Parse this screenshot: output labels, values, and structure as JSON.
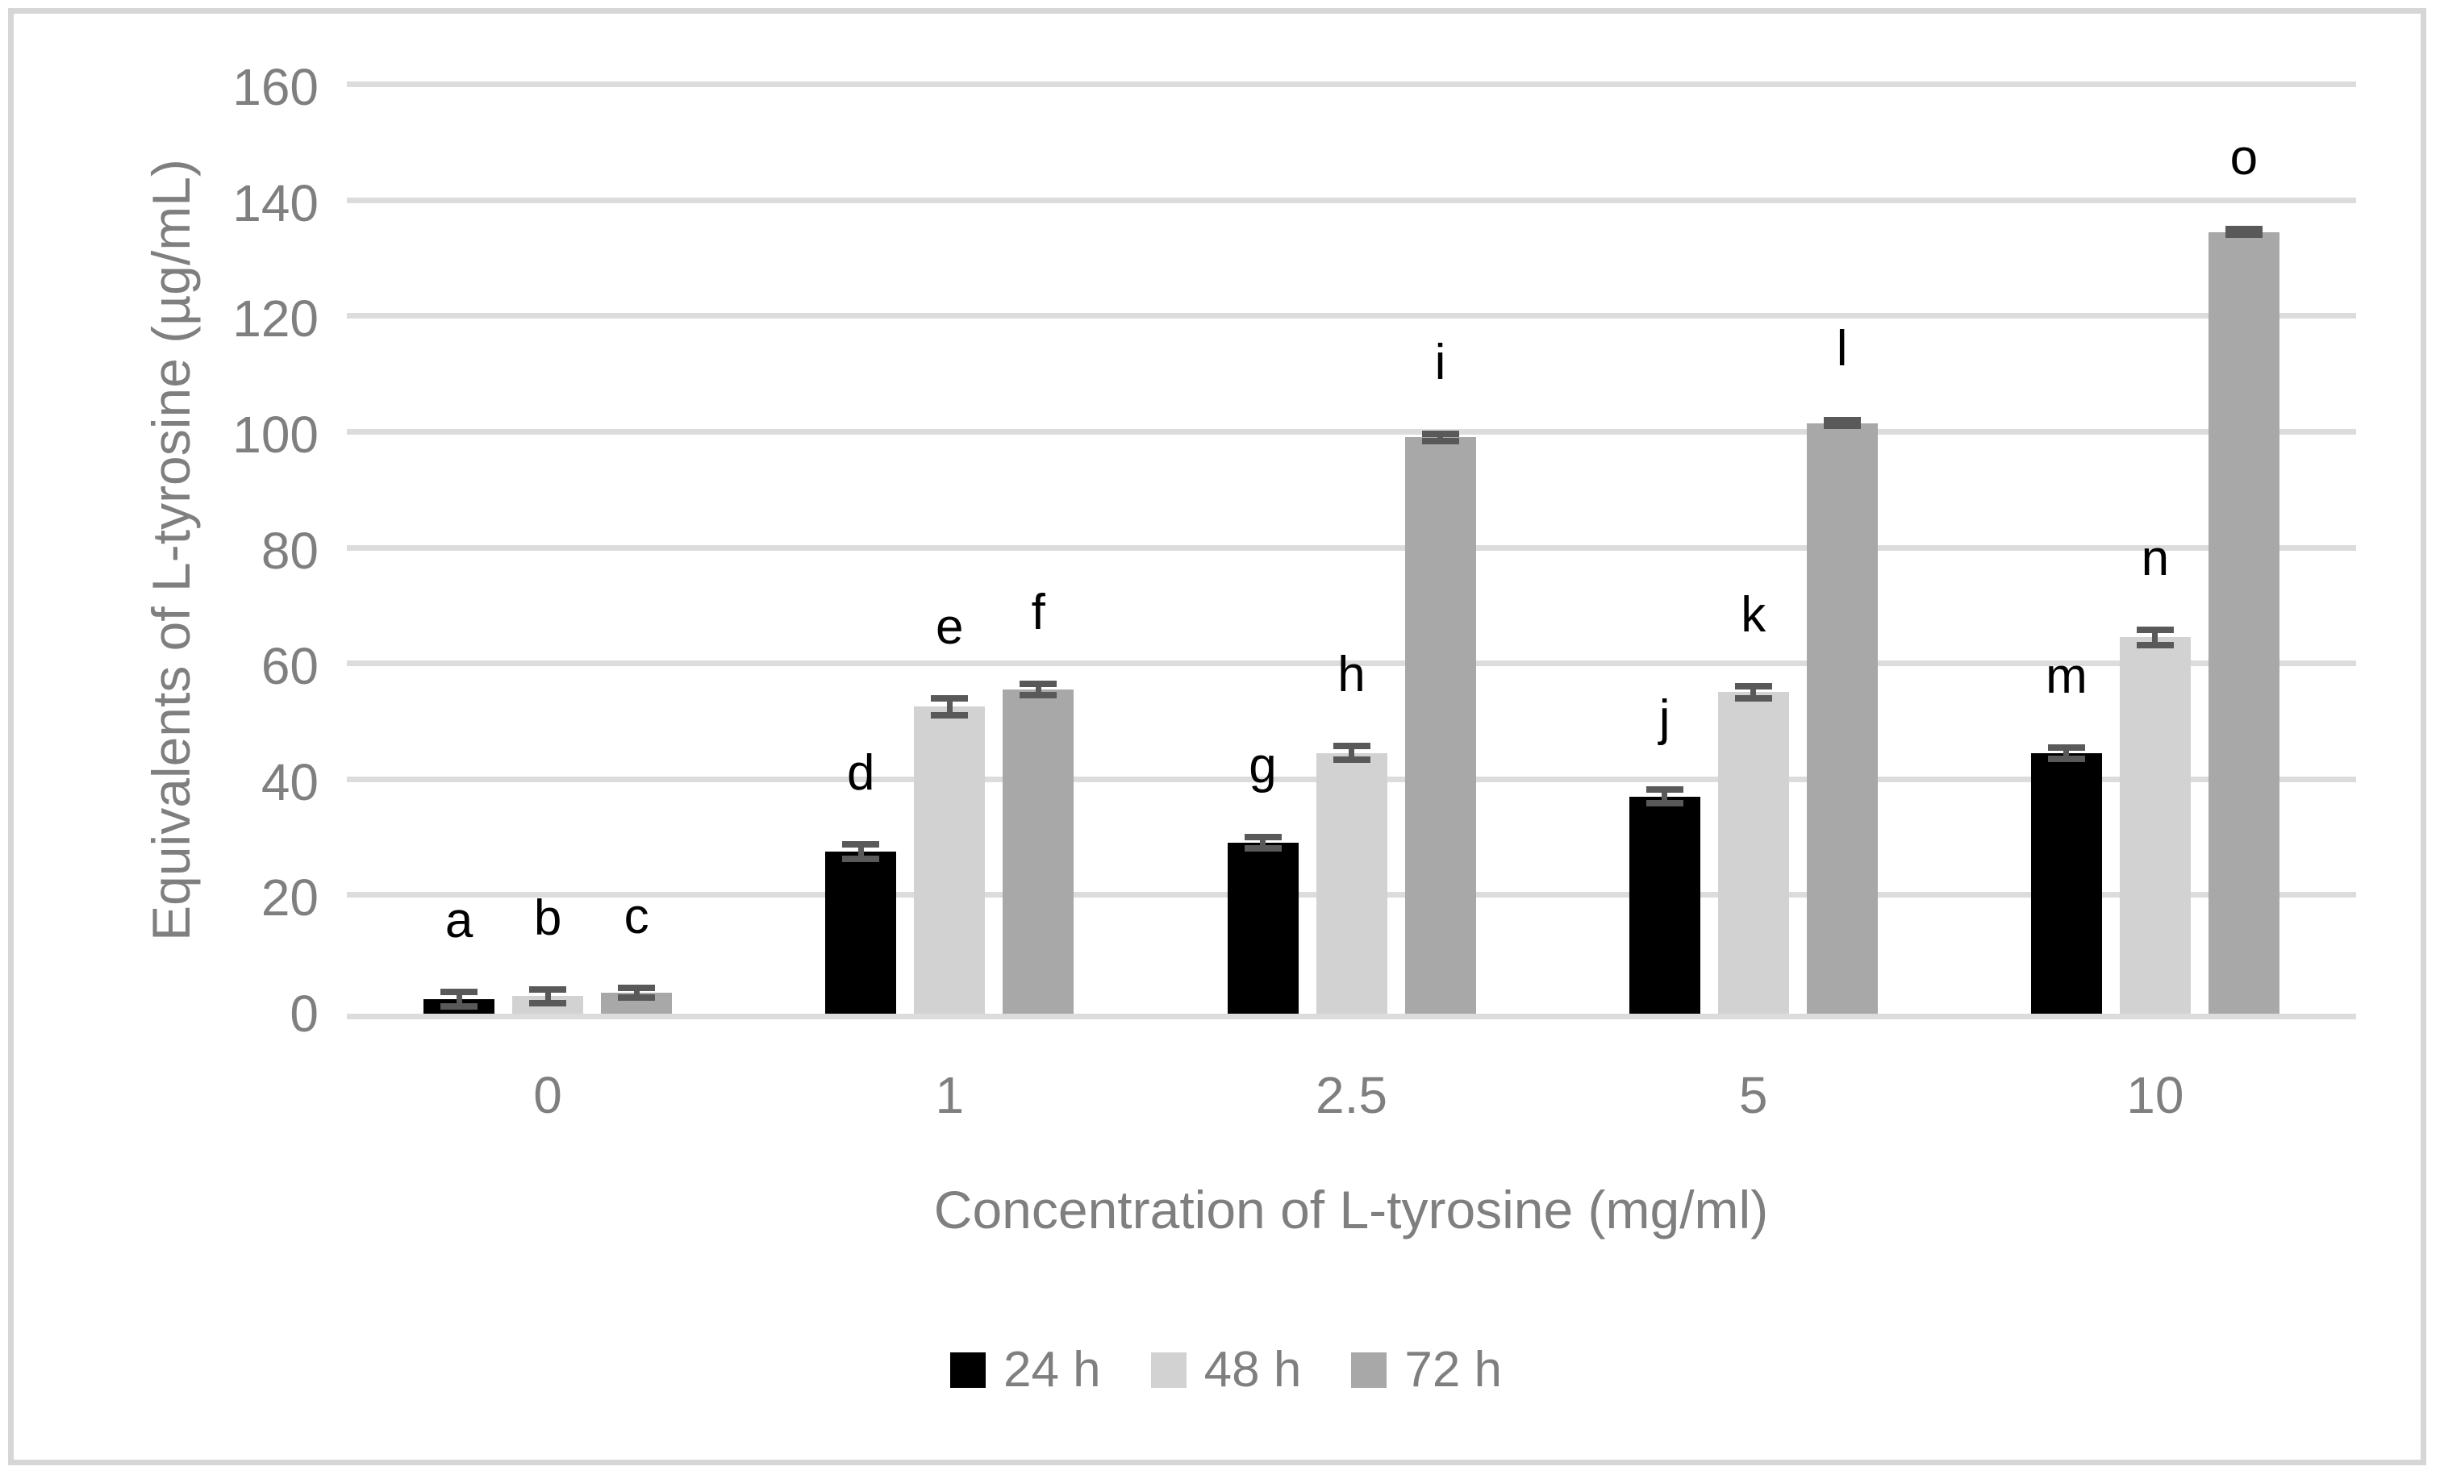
{
  "chart_data": {
    "type": "bar",
    "y_axis": {
      "label": "Equivalents of L-tyrosine (µg/mL)",
      "min": 0,
      "max": 160,
      "tick_step": 20,
      "ticks": [
        0,
        20,
        40,
        60,
        80,
        100,
        120,
        140,
        160
      ]
    },
    "x_axis": {
      "label": "Concentration of L-tyrosine (mg/ml)",
      "categories": [
        "0",
        "1",
        "2.5",
        "5",
        "10"
      ]
    },
    "series": [
      {
        "name": "24 h",
        "color": "#000000",
        "values": [
          2.5,
          28,
          29.5,
          37.5,
          45
        ],
        "errors": [
          1.2,
          1.2,
          1.0,
          1.2,
          1.0
        ],
        "letters": [
          "a",
          "d",
          "g",
          "j",
          "m"
        ]
      },
      {
        "name": "48 h",
        "color": "#d2d2d2",
        "values": [
          3,
          53,
          45,
          55.5,
          65
        ],
        "errors": [
          1.2,
          1.5,
          1.2,
          1.0,
          1.3
        ],
        "letters": [
          "b",
          "e",
          "h",
          "k",
          "n"
        ]
      },
      {
        "name": "72 h",
        "color": "#a8a8a8",
        "values": [
          3.6,
          56,
          99.5,
          102,
          135
        ],
        "errors": [
          0.8,
          1.0,
          0.6,
          0.5,
          0.5
        ],
        "letters": [
          "c",
          "f",
          "i",
          "l",
          "o"
        ]
      }
    ],
    "legend": {
      "position": "bottom",
      "items": [
        "24 h",
        "48 h",
        "72 h"
      ]
    },
    "colors": {
      "gridline": "#dcdcdc",
      "error_bar": "#595959",
      "axis_text": "#7f7f7f",
      "annotation_text": "#000000",
      "frame_border": "#d6d6d6",
      "background": "#ffffff"
    },
    "grid": true
  }
}
